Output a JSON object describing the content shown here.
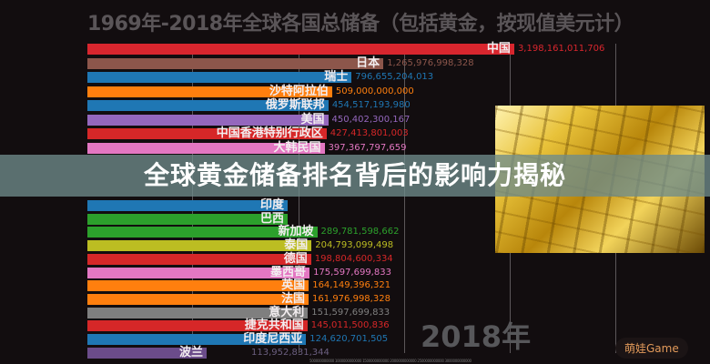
{
  "chart_data": {
    "type": "bar",
    "title": "1969年-2018年全球各国总储备（包括黄金，按现值美元计）",
    "year_label": "2018年",
    "axis_ticks_text": "500000000000 1000000000000 1500000000000 2000000000000 2500000000000 3000000000000",
    "bars": [
      {
        "name": "中国",
        "value": 3198161011706,
        "value_text": "3,198,161,011,706",
        "color": "#d8262e"
      },
      {
        "name": "日本",
        "value": 1265976998328,
        "value_text": "1,265,976,998,328",
        "color": "#8c564b"
      },
      {
        "name": "瑞士",
        "value": 796655204013,
        "value_text": "796,655,204,013",
        "color": "#1f77b4"
      },
      {
        "name": "沙特阿拉伯",
        "value": 509000000000,
        "value_text": "509,000,000,000",
        "color": "#ff7f0e"
      },
      {
        "name": "俄罗斯联邦",
        "value": 454517193980,
        "value_text": "454,517,193,980",
        "color": "#1f77b4"
      },
      {
        "name": "美国",
        "value": 450402300167,
        "value_text": "450,402,300,167",
        "color": "#9467bd"
      },
      {
        "name": "中国香港特别行政区",
        "value": 427413801003,
        "value_text": "427,413,801,003",
        "color": "#d62728"
      },
      {
        "name": "大韩民国",
        "value": 397367797659,
        "value_text": "397,367,797,659",
        "color": "#e377c2"
      },
      {
        "name": "印度",
        "value": null,
        "value_text": "",
        "color": "#1f77b4"
      },
      {
        "name": "巴西",
        "value": null,
        "value_text": "",
        "color": "#2ca02c"
      },
      {
        "name": "新加坡",
        "value": 289781598662,
        "value_text": "289,781,598,662",
        "color": "#2ca02c"
      },
      {
        "name": "泰国",
        "value": 204793099498,
        "value_text": "204,793,099,498",
        "color": "#bcbd22"
      },
      {
        "name": "德国",
        "value": 198804600334,
        "value_text": "198,804,600,334",
        "color": "#d62728"
      },
      {
        "name": "墨西哥",
        "value": 175597699833,
        "value_text": "175,597,699,833",
        "color": "#e377c2"
      },
      {
        "name": "英国",
        "value": 164149396321,
        "value_text": "164,149,396,321",
        "color": "#ff7f0e"
      },
      {
        "name": "法国",
        "value": 161976998328,
        "value_text": "161,976,998,328",
        "color": "#ff7f0e"
      },
      {
        "name": "意大利",
        "value": 151597699833,
        "value_text": "151,597,699,833",
        "color": "#7f7f7f"
      },
      {
        "name": "捷克共和国",
        "value": 145011500836,
        "value_text": "145,011,500,836",
        "color": "#d62728"
      },
      {
        "name": "印度尼西亚",
        "value": 124620701505,
        "value_text": "124,620,701,505",
        "color": "#1f77b4"
      },
      {
        "name": "波兰",
        "value": 113952831344,
        "value_text": "113,952,831,344",
        "color": "#6b4c8a"
      }
    ]
  },
  "banner": {
    "text": "全球黄金储备排名背后的影响力揭秘"
  },
  "watermark": {
    "text": "萌娃Game"
  }
}
